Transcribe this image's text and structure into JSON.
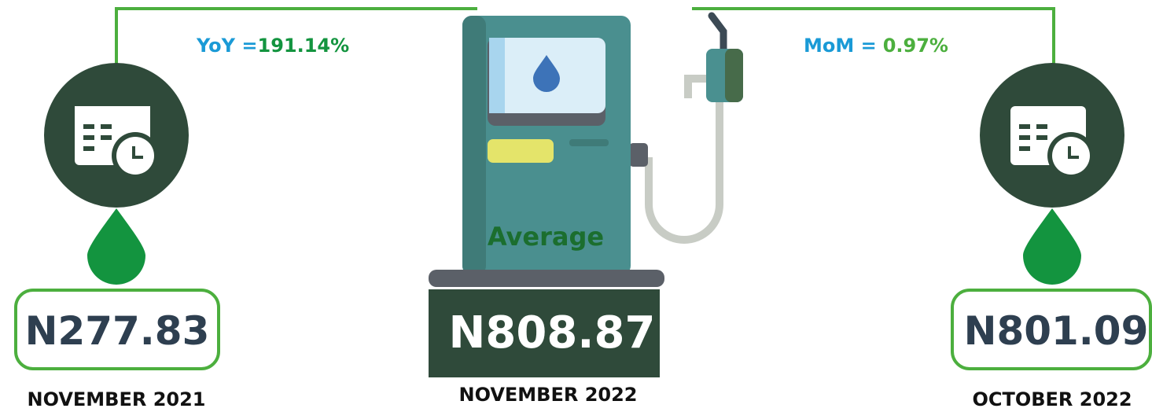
{
  "comparisons": {
    "yoy": {
      "label": "YoY =",
      "value": "191.14%"
    },
    "mom": {
      "label": "MoM =",
      "value": "0.97%"
    }
  },
  "left": {
    "price": "N277.83",
    "period": "NOVEMBER 2021"
  },
  "center": {
    "label": "Average",
    "price": "N808.87",
    "period": "NOVEMBER 2022"
  },
  "right": {
    "price": "N801.09",
    "period": "OCTOBER 2022"
  }
}
